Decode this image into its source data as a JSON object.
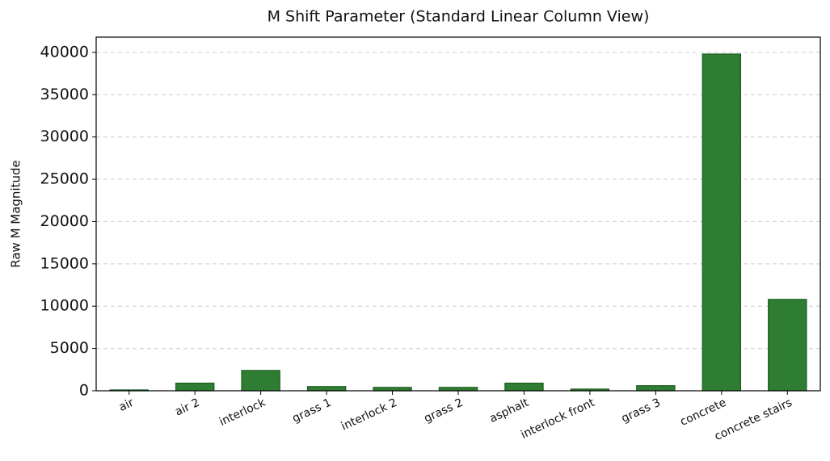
{
  "chart_data": {
    "type": "bar",
    "title": "M Shift Parameter (Standard Linear Column View)",
    "y_label": "Raw M Magnitude",
    "categories": [
      "air",
      "air 2",
      "interlock",
      "grass 1",
      "interlock 2",
      "grass 2",
      "asphalt",
      "interlock front",
      "grass 3",
      "concrete",
      "concrete stairs"
    ],
    "values": [
      100,
      900,
      2400,
      500,
      400,
      400,
      900,
      200,
      600,
      39800,
      10800
    ],
    "color": "#2e7d32",
    "edge_color": "#1b5e20",
    "ylim": [
      0,
      41800
    ],
    "yticks": [
      0,
      5000,
      10000,
      15000,
      20000,
      25000,
      30000,
      35000,
      40000
    ],
    "grid": true
  }
}
